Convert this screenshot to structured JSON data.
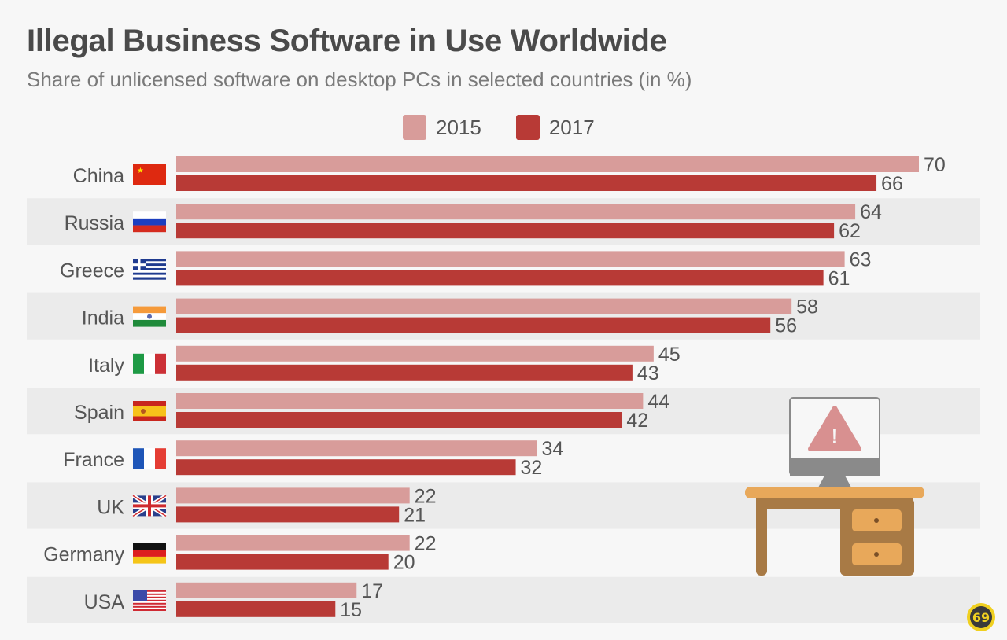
{
  "header": {
    "title": "Illegal Business Software in Use Worldwide",
    "subtitle": "Share of unlicensed software on desktop PCs in selected countries (in %)"
  },
  "legend": [
    {
      "label": "2015",
      "color": "#d89c9a"
    },
    {
      "label": "2017",
      "color": "#b83a36"
    }
  ],
  "chart_data": {
    "type": "bar",
    "orientation": "horizontal",
    "title": "Illegal Business Software in Use Worldwide",
    "subtitle": "Share of unlicensed software on desktop PCs in selected countries (in %)",
    "xlabel": "",
    "ylabel": "",
    "xlim": [
      0,
      70
    ],
    "grid": false,
    "legend_position": "top-center",
    "categories": [
      "China",
      "Russia",
      "Greece",
      "India",
      "Italy",
      "Spain",
      "France",
      "UK",
      "Germany",
      "USA"
    ],
    "flags": [
      "china-flag",
      "russia-flag",
      "greece-flag",
      "india-flag",
      "italy-flag",
      "spain-flag",
      "france-flag",
      "uk-flag",
      "germany-flag",
      "usa-flag"
    ],
    "series": [
      {
        "name": "2015",
        "color": "#d89c9a",
        "values": [
          70,
          64,
          63,
          58,
          45,
          44,
          34,
          22,
          22,
          17
        ]
      },
      {
        "name": "2017",
        "color": "#b83a36",
        "values": [
          66,
          62,
          61,
          56,
          43,
          42,
          32,
          21,
          20,
          15
        ]
      }
    ]
  },
  "illustration": {
    "name": "desk-computer-warning",
    "warning_symbol": "!"
  },
  "badge": {
    "glyph": "69"
  }
}
